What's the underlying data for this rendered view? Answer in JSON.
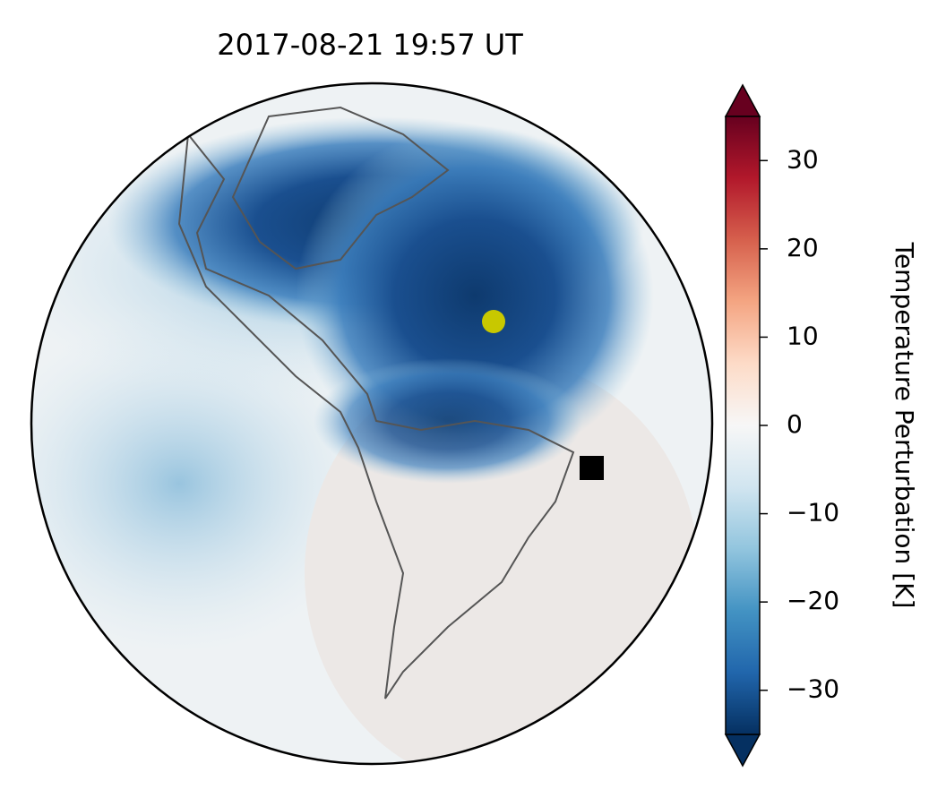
{
  "chart_data": {
    "type": "map",
    "title": "2017-08-21  19:57 UT",
    "colorbar_label": "Temperature Perturbation [K]",
    "clim": [
      -35,
      35
    ],
    "cticks": [
      {
        "value": -30,
        "label": "−30"
      },
      {
        "value": -20,
        "label": "−20"
      },
      {
        "value": -10,
        "label": "−10"
      },
      0,
      10,
      20,
      30
    ],
    "colormap": [
      "#053061",
      "#2166ac",
      "#4393c3",
      "#92c5de",
      "#d1e5f0",
      "#f7f7f7",
      "#fddbc7",
      "#f4a582",
      "#d6604d",
      "#b2182b",
      "#67001f"
    ]
  }
}
